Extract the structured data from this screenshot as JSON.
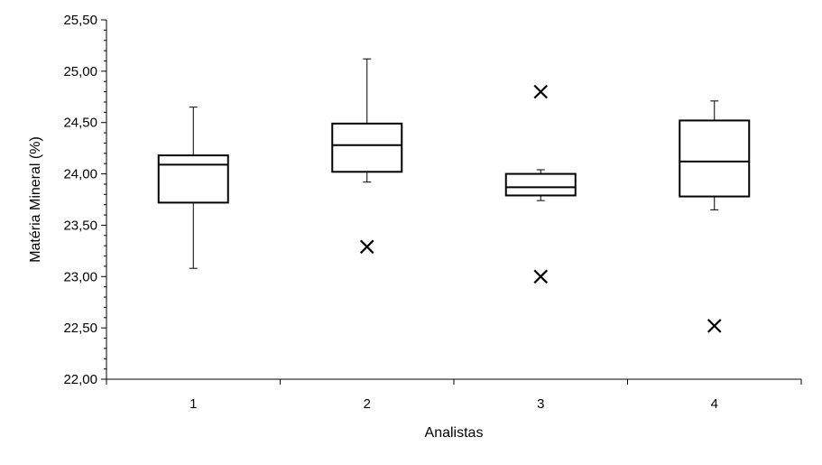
{
  "chart_data": {
    "type": "boxplot",
    "xlabel": "Analistas",
    "ylabel": "Matéria Mineral (%)",
    "ylim": [
      22.0,
      25.5
    ],
    "y_ticks": [
      "22,00",
      "22,50",
      "23,00",
      "23,50",
      "24,00",
      "24,50",
      "25,00",
      "25,50"
    ],
    "y_minor_tick_step": 0.1,
    "grid": false,
    "legend": "none",
    "colors": {
      "stroke": "#000000",
      "fill": "#ffffff"
    },
    "categories": [
      "1",
      "2",
      "3",
      "4"
    ],
    "boxes": [
      {
        "category": "1",
        "whisker_low": 23.08,
        "q1": 23.72,
        "median": 24.09,
        "q3": 24.18,
        "whisker_high": 24.65,
        "outliers": []
      },
      {
        "category": "2",
        "whisker_low": 23.92,
        "q1": 24.02,
        "median": 24.28,
        "q3": 24.49,
        "whisker_high": 25.12,
        "outliers": [
          23.29
        ]
      },
      {
        "category": "3",
        "whisker_low": 23.74,
        "q1": 23.79,
        "median": 23.87,
        "q3": 24.0,
        "whisker_high": 24.04,
        "outliers": [
          24.8,
          23.0
        ]
      },
      {
        "category": "4",
        "whisker_low": 23.65,
        "q1": 23.78,
        "median": 24.12,
        "q3": 24.52,
        "whisker_high": 24.71,
        "outliers": [
          22.52
        ]
      }
    ]
  }
}
